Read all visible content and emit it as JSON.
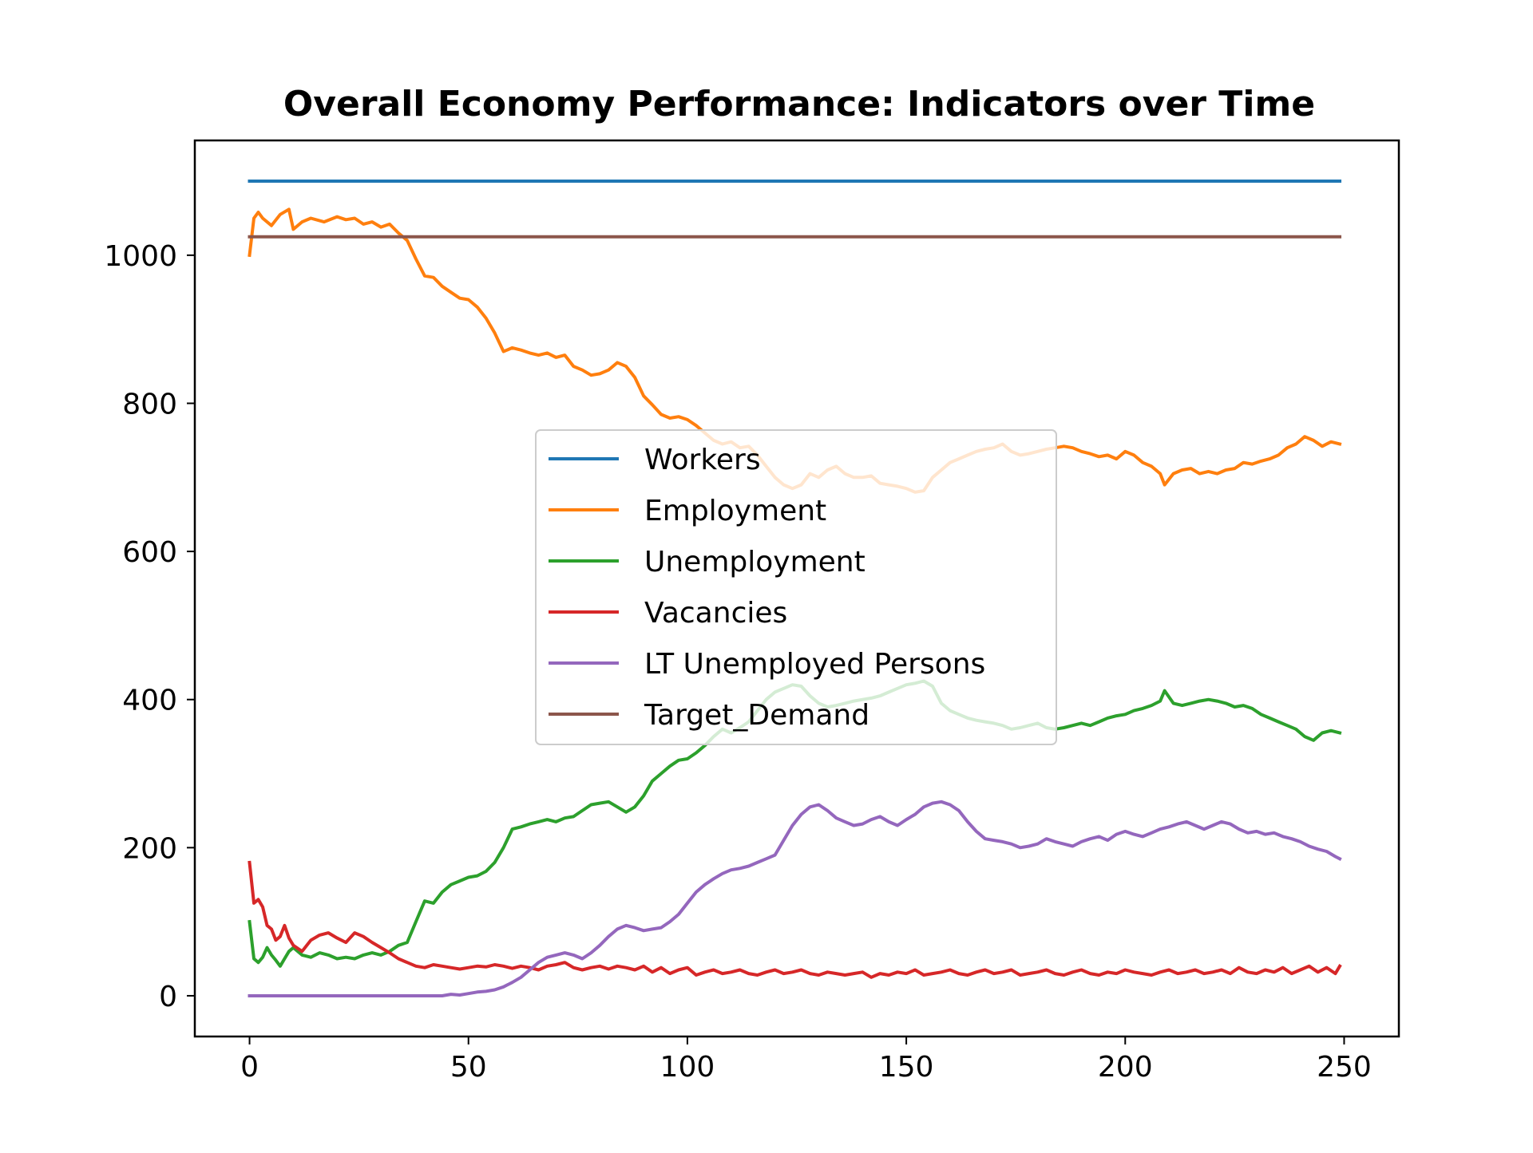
{
  "chart_data": {
    "type": "line",
    "title": "Overall Economy Performance: Indicators over Time",
    "xlabel": "",
    "ylabel": "",
    "xlim": [
      -12.5,
      262.5
    ],
    "ylim": [
      -55,
      1155
    ],
    "xticks": [
      0,
      50,
      100,
      150,
      200,
      250
    ],
    "yticks": [
      0,
      200,
      400,
      600,
      800,
      1000
    ],
    "grid": false,
    "legend_position": "center",
    "series": [
      {
        "name": "Workers",
        "color": "#1f77b4",
        "x": [
          0,
          249
        ],
        "y": [
          1100,
          1100
        ]
      },
      {
        "name": "Employment",
        "color": "#ff7f0e",
        "x": [
          0,
          1,
          2,
          3,
          5,
          7,
          9,
          10,
          12,
          14,
          17,
          20,
          22,
          24,
          26,
          28,
          30,
          32,
          34,
          36,
          38,
          40,
          42,
          44,
          46,
          48,
          50,
          52,
          54,
          56,
          58,
          60,
          62,
          64,
          66,
          68,
          70,
          72,
          74,
          76,
          78,
          80,
          82,
          84,
          86,
          88,
          90,
          92,
          94,
          96,
          98,
          100,
          102,
          104,
          106,
          108,
          110,
          112,
          114,
          116,
          118,
          120,
          122,
          124,
          126,
          128,
          130,
          132,
          134,
          136,
          138,
          140,
          142,
          144,
          146,
          148,
          150,
          152,
          154,
          156,
          158,
          160,
          162,
          164,
          166,
          168,
          170,
          172,
          174,
          176,
          178,
          180,
          182,
          184,
          186,
          188,
          190,
          192,
          194,
          196,
          198,
          200,
          202,
          204,
          206,
          208,
          209,
          211,
          213,
          215,
          217,
          219,
          221,
          223,
          225,
          227,
          229,
          231,
          233,
          235,
          237,
          239,
          241,
          243,
          245,
          247,
          249
        ],
        "y": [
          1000,
          1050,
          1058,
          1050,
          1040,
          1055,
          1062,
          1035,
          1045,
          1050,
          1045,
          1052,
          1048,
          1050,
          1042,
          1045,
          1038,
          1042,
          1030,
          1020,
          995,
          972,
          970,
          958,
          950,
          942,
          940,
          930,
          915,
          895,
          870,
          875,
          872,
          868,
          865,
          868,
          862,
          865,
          850,
          845,
          838,
          840,
          845,
          855,
          850,
          835,
          810,
          798,
          785,
          780,
          782,
          778,
          770,
          760,
          750,
          745,
          748,
          740,
          742,
          730,
          715,
          700,
          690,
          685,
          690,
          705,
          700,
          710,
          715,
          705,
          700,
          700,
          702,
          692,
          690,
          688,
          685,
          680,
          682,
          700,
          710,
          720,
          725,
          730,
          735,
          738,
          740,
          745,
          735,
          730,
          732,
          735,
          738,
          740,
          742,
          740,
          735,
          732,
          728,
          730,
          725,
          735,
          730,
          720,
          715,
          705,
          690,
          705,
          710,
          712,
          705,
          708,
          705,
          710,
          712,
          720,
          718,
          722,
          725,
          730,
          740,
          745,
          755,
          750,
          742,
          748,
          745
        ]
      },
      {
        "name": "Unemployment",
        "color": "#2ca02c",
        "x": [
          0,
          1,
          2,
          3,
          4,
          5,
          6,
          7,
          8,
          9,
          10,
          12,
          14,
          16,
          18,
          20,
          22,
          24,
          26,
          28,
          30,
          32,
          34,
          36,
          38,
          40,
          42,
          44,
          46,
          48,
          50,
          52,
          54,
          56,
          58,
          60,
          62,
          64,
          66,
          68,
          70,
          72,
          74,
          76,
          78,
          80,
          82,
          84,
          86,
          88,
          90,
          92,
          94,
          96,
          98,
          100,
          102,
          104,
          106,
          108,
          110,
          112,
          114,
          116,
          118,
          120,
          122,
          124,
          126,
          128,
          130,
          132,
          134,
          136,
          138,
          140,
          142,
          144,
          146,
          148,
          150,
          152,
          154,
          156,
          158,
          160,
          162,
          164,
          166,
          168,
          170,
          172,
          174,
          176,
          178,
          180,
          182,
          184,
          186,
          188,
          190,
          192,
          194,
          196,
          198,
          200,
          202,
          204,
          206,
          208,
          209,
          211,
          213,
          215,
          217,
          219,
          221,
          223,
          225,
          227,
          229,
          231,
          233,
          235,
          237,
          239,
          241,
          243,
          245,
          247,
          249
        ],
        "y": [
          100,
          50,
          45,
          52,
          65,
          55,
          48,
          40,
          50,
          60,
          65,
          55,
          52,
          58,
          55,
          50,
          52,
          50,
          55,
          58,
          55,
          60,
          68,
          72,
          100,
          128,
          125,
          140,
          150,
          155,
          160,
          162,
          168,
          180,
          200,
          225,
          228,
          232,
          235,
          238,
          235,
          240,
          242,
          250,
          258,
          260,
          262,
          255,
          248,
          255,
          270,
          290,
          300,
          310,
          318,
          320,
          328,
          338,
          350,
          360,
          355,
          362,
          370,
          385,
          400,
          410,
          415,
          420,
          418,
          405,
          395,
          390,
          392,
          395,
          398,
          400,
          402,
          405,
          410,
          415,
          420,
          422,
          425,
          418,
          395,
          385,
          380,
          375,
          372,
          370,
          368,
          365,
          360,
          362,
          365,
          368,
          362,
          360,
          362,
          365,
          368,
          365,
          370,
          375,
          378,
          380,
          385,
          388,
          392,
          398,
          412,
          395,
          392,
          395,
          398,
          400,
          398,
          395,
          390,
          392,
          388,
          380,
          375,
          370,
          365,
          360,
          350,
          345,
          355,
          358,
          355
        ]
      },
      {
        "name": "Vacancies",
        "color": "#d62728",
        "x": [
          0,
          1,
          2,
          3,
          4,
          5,
          6,
          7,
          8,
          9,
          10,
          12,
          14,
          16,
          18,
          20,
          22,
          24,
          26,
          28,
          30,
          32,
          34,
          36,
          38,
          40,
          42,
          44,
          46,
          48,
          50,
          52,
          54,
          56,
          58,
          60,
          62,
          64,
          66,
          68,
          70,
          72,
          74,
          76,
          78,
          80,
          82,
          84,
          86,
          88,
          90,
          92,
          94,
          96,
          98,
          100,
          102,
          104,
          106,
          108,
          110,
          112,
          114,
          116,
          118,
          120,
          122,
          124,
          126,
          128,
          130,
          132,
          134,
          136,
          138,
          140,
          142,
          144,
          146,
          148,
          150,
          152,
          154,
          156,
          158,
          160,
          162,
          164,
          166,
          168,
          170,
          172,
          174,
          176,
          178,
          180,
          182,
          184,
          186,
          188,
          190,
          192,
          194,
          196,
          198,
          200,
          202,
          204,
          206,
          208,
          210,
          212,
          214,
          216,
          218,
          220,
          222,
          224,
          226,
          228,
          230,
          232,
          234,
          236,
          238,
          240,
          242,
          244,
          246,
          248,
          249
        ],
        "y": [
          180,
          125,
          130,
          120,
          95,
          90,
          75,
          80,
          95,
          78,
          68,
          60,
          75,
          82,
          85,
          78,
          72,
          85,
          80,
          72,
          65,
          58,
          50,
          45,
          40,
          38,
          42,
          40,
          38,
          36,
          38,
          40,
          39,
          42,
          40,
          37,
          40,
          38,
          35,
          40,
          42,
          45,
          38,
          35,
          38,
          40,
          36,
          40,
          38,
          35,
          40,
          32,
          38,
          30,
          35,
          38,
          28,
          32,
          35,
          30,
          32,
          35,
          30,
          28,
          32,
          35,
          30,
          32,
          35,
          30,
          28,
          32,
          30,
          28,
          30,
          32,
          25,
          30,
          28,
          32,
          30,
          35,
          28,
          30,
          32,
          35,
          30,
          28,
          32,
          35,
          30,
          32,
          35,
          28,
          30,
          32,
          35,
          30,
          28,
          32,
          35,
          30,
          28,
          32,
          30,
          35,
          32,
          30,
          28,
          32,
          35,
          30,
          32,
          35,
          30,
          32,
          35,
          30,
          38,
          32,
          30,
          35,
          32,
          38,
          30,
          35,
          40,
          32,
          38,
          30,
          40
        ]
      },
      {
        "name": "LT Unemployed Persons",
        "color": "#9467bd",
        "x": [
          0,
          10,
          20,
          30,
          40,
          44,
          46,
          48,
          50,
          52,
          54,
          56,
          58,
          60,
          62,
          64,
          66,
          68,
          70,
          72,
          74,
          76,
          78,
          80,
          82,
          84,
          86,
          88,
          90,
          92,
          94,
          96,
          98,
          100,
          102,
          104,
          106,
          108,
          110,
          112,
          114,
          116,
          118,
          120,
          122,
          124,
          126,
          128,
          130,
          132,
          134,
          136,
          138,
          140,
          142,
          144,
          146,
          148,
          150,
          152,
          154,
          156,
          158,
          160,
          162,
          164,
          166,
          168,
          170,
          172,
          174,
          176,
          178,
          180,
          182,
          184,
          186,
          188,
          190,
          192,
          194,
          196,
          198,
          200,
          202,
          204,
          206,
          208,
          210,
          212,
          214,
          216,
          218,
          220,
          222,
          224,
          226,
          228,
          230,
          232,
          234,
          236,
          238,
          240,
          242,
          244,
          246,
          248,
          249
        ],
        "y": [
          0,
          0,
          0,
          0,
          0,
          0,
          2,
          1,
          3,
          5,
          6,
          8,
          12,
          18,
          25,
          35,
          45,
          52,
          55,
          58,
          55,
          50,
          58,
          68,
          80,
          90,
          95,
          92,
          88,
          90,
          92,
          100,
          110,
          125,
          140,
          150,
          158,
          165,
          170,
          172,
          175,
          180,
          185,
          190,
          210,
          230,
          245,
          255,
          258,
          250,
          240,
          235,
          230,
          232,
          238,
          242,
          235,
          230,
          238,
          245,
          255,
          260,
          262,
          258,
          250,
          235,
          222,
          212,
          210,
          208,
          205,
          200,
          202,
          205,
          212,
          208,
          205,
          202,
          208,
          212,
          215,
          210,
          218,
          222,
          218,
          215,
          220,
          225,
          228,
          232,
          235,
          230,
          225,
          230,
          235,
          232,
          225,
          220,
          222,
          218,
          220,
          215,
          212,
          208,
          202,
          198,
          195,
          188,
          185
        ]
      },
      {
        "name": "Target_Demand",
        "color": "#8c564b",
        "x": [
          0,
          249
        ],
        "y": [
          1025,
          1025
        ]
      }
    ]
  }
}
